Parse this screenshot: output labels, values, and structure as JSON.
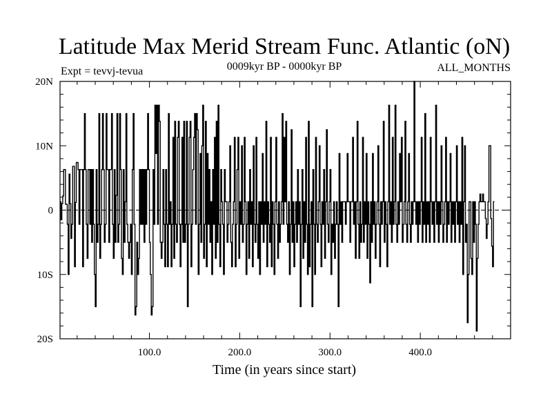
{
  "chart_data": {
    "type": "line",
    "title": "Latitude Max Merid Stream Func. Atlantic (oN)",
    "subtitle_left": "Expt = tevvj-tevua",
    "subtitle_center": "0009kyr BP - 0000kyr BP",
    "subtitle_right": "ALL_MONTHS",
    "xlabel": "Time (in years since start)",
    "ylabel": "",
    "xlim": [
      1,
      500
    ],
    "ylim": [
      -20,
      20
    ],
    "xticks": [
      {
        "value": 100,
        "label": "100.0"
      },
      {
        "value": 200,
        "label": "200.0"
      },
      {
        "value": 300,
        "label": "300.0"
      },
      {
        "value": 400,
        "label": "400.0"
      }
    ],
    "yticks": [
      {
        "value": 20,
        "label": "20N"
      },
      {
        "value": 10,
        "label": "10N"
      },
      {
        "value": 0,
        "label": "0"
      },
      {
        "value": -10,
        "label": "10S"
      },
      {
        "value": -20,
        "label": "20S"
      }
    ],
    "zero_line": true,
    "grid": false,
    "series": [
      {
        "name": "latitude_max",
        "x_start": 1,
        "x_step": 1,
        "values": [
          1.3,
          -1.5,
          1.0,
          2.2,
          6.3,
          6.3,
          0.9,
          0.9,
          -2.2,
          -10.0,
          5.6,
          1.0,
          -4.4,
          -2.2,
          6.8,
          6.8,
          -8.8,
          1.2,
          7.4,
          7.4,
          6.3,
          -2.2,
          6.3,
          6.3,
          6.3,
          -8.8,
          6.3,
          15.0,
          6.3,
          -2.2,
          -7.5,
          6.3,
          6.3,
          -2.2,
          6.3,
          -5.0,
          6.3,
          -2.2,
          -10.0,
          -15.0,
          6.3,
          -5.0,
          -2.2,
          15.0,
          -7.5,
          -2.2,
          6.3,
          15.0,
          6.3,
          -5.0,
          -2.2,
          15.0,
          6.3,
          6.3,
          -5.0,
          6.3,
          6.3,
          15.0,
          -2.2,
          -7.5,
          6.3,
          -5.0,
          2.3,
          15.0,
          -5.0,
          -2.2,
          15.0,
          6.3,
          -7.5,
          -10.0,
          6.3,
          -5.0,
          1.3,
          15.0,
          -2.2,
          -5.0,
          -7.5,
          -5.0,
          -2.2,
          -10.0,
          6.3,
          15.0,
          -2.2,
          -16.3,
          -15.0,
          -5.0,
          -10.0,
          -7.5,
          6.3,
          -2.2,
          6.3,
          -2.2,
          6.3,
          -5.0,
          6.3,
          -2.2,
          6.3,
          15.0,
          6.3,
          -5.0,
          -10.0,
          -16.3,
          -15.0,
          6.3,
          -2.2,
          16.3,
          8.8,
          16.3,
          -2.2,
          16.3,
          13.8,
          -5.0,
          -7.5,
          -5.0,
          6.3,
          -2.2,
          -8.8,
          6.3,
          -2.2,
          -8.8,
          15.0,
          -2.2,
          1.3,
          -8.8,
          -2.2,
          11.3,
          -7.5,
          13.8,
          -2.2,
          -5.0,
          11.3,
          13.8,
          -2.2,
          -8.8,
          -2.2,
          11.3,
          -5.0,
          13.8,
          -5.0,
          -2.2,
          13.8,
          -15.0,
          -2.2,
          11.3,
          13.8,
          -8.8,
          -2.2,
          6.3,
          11.3,
          15.0,
          -2.2,
          15.0,
          12.5,
          -10.0,
          -2.2,
          8.8,
          -5.0,
          10.0,
          16.3,
          -7.5,
          -2.2,
          13.8,
          -8.8,
          8.8,
          -2.2,
          6.3,
          -5.0,
          1.3,
          -10.0,
          6.3,
          -2.2,
          11.3,
          -7.5,
          13.8,
          -5.0,
          16.3,
          -2.2,
          -8.8,
          6.3,
          1.3,
          -2.2,
          -10.0,
          6.3,
          1.3,
          1.3,
          -5.0,
          -2.2,
          1.3,
          10.0,
          -5.0,
          -8.8,
          -2.2,
          1.3,
          11.3,
          -8.8,
          -2.2,
          6.3,
          11.3,
          -7.5,
          1.3,
          -2.2,
          10.0,
          -5.0,
          -2.2,
          11.3,
          1.3,
          -10.0,
          -2.2,
          1.3,
          -7.5,
          6.3,
          -2.2,
          1.3,
          -8.8,
          10.0,
          -2.2,
          -5.0,
          11.3,
          -2.2,
          -7.5,
          1.3,
          -10.0,
          1.3,
          -2.2,
          8.8,
          -5.0,
          1.3,
          -2.2,
          13.8,
          -8.8,
          1.3,
          -2.2,
          -5.0,
          11.3,
          -8.8,
          1.3,
          -2.2,
          -10.0,
          1.3,
          11.3,
          -2.2,
          -7.5,
          1.3,
          -5.0,
          -2.2,
          1.3,
          15.0,
          -2.2,
          11.3,
          1.3,
          13.8,
          -2.2,
          -5.0,
          1.3,
          -10.0,
          -2.2,
          12.5,
          -5.0,
          1.3,
          -8.8,
          -2.2,
          1.3,
          -5.0,
          6.3,
          -2.2,
          1.3,
          -15.0,
          -2.2,
          6.3,
          -7.5,
          1.3,
          -5.0,
          11.3,
          -2.2,
          -10.0,
          13.8,
          -8.8,
          -2.2,
          1.3,
          -15.0,
          6.3,
          -2.2,
          -10.0,
          11.3,
          -2.2,
          -5.0,
          1.3,
          10.0,
          -2.2,
          -8.8,
          1.3,
          -2.2,
          6.3,
          -7.5,
          1.3,
          12.5,
          -2.2,
          -5.0,
          1.3,
          6.3,
          -10.0,
          -2.2,
          -5.0,
          1.3,
          -7.5,
          -2.2,
          1.3,
          -2.2,
          -15.0,
          8.8,
          -2.2,
          1.3,
          -5.0,
          1.3,
          1.3,
          1.3,
          -2.2,
          1.3,
          8.8,
          1.3,
          1.3,
          -5.0,
          1.3,
          1.3,
          11.3,
          -2.2,
          1.3,
          -7.5,
          1.3,
          13.8,
          -2.2,
          -7.5,
          1.3,
          -5.0,
          -2.2,
          11.3,
          -5.0,
          1.3,
          -2.2,
          8.8,
          -7.5,
          1.3,
          -2.2,
          -11.3,
          1.3,
          -5.0,
          8.8,
          -2.2,
          1.3,
          -7.5,
          -2.2,
          1.3,
          10.0,
          -2.2,
          -8.8,
          1.3,
          -2.2,
          1.3,
          13.8,
          -5.0,
          1.3,
          -2.2,
          -8.8,
          1.3,
          16.3,
          -2.2,
          1.3,
          -5.0,
          11.3,
          -2.2,
          1.3,
          16.3,
          -2.2,
          -5.0,
          1.3,
          -2.2,
          8.8,
          1.3,
          11.3,
          -5.0,
          -2.2,
          1.3,
          13.8,
          -2.2,
          -5.0,
          1.3,
          8.8,
          -2.2,
          -5.0,
          1.3,
          -2.2,
          1.3,
          20.0,
          1.3,
          -2.2,
          1.3,
          -5.0,
          1.3,
          -2.2,
          1.3,
          11.3,
          -5.0,
          1.3,
          -2.2,
          15.0,
          -5.0,
          1.3,
          -2.2,
          1.3,
          -5.0,
          11.3,
          1.3,
          -2.2,
          1.3,
          -5.0,
          1.3,
          16.3,
          -2.2,
          1.3,
          -5.0,
          1.3,
          -2.2,
          10.0,
          1.3,
          -5.0,
          -2.2,
          1.3,
          11.3,
          -5.0,
          1.3,
          -2.2,
          1.3,
          8.8,
          -5.0,
          1.3,
          -2.2,
          1.3,
          -5.0,
          1.3,
          10.0,
          -2.2,
          1.3,
          -5.0,
          1.3,
          -2.2,
          11.3,
          -10.0,
          1.3,
          10.0,
          -5.0,
          -2.2,
          -17.5,
          -10.0,
          1.3,
          1.3,
          -7.5,
          -10.0,
          1.3,
          -5.0,
          1.3,
          -2.2,
          -18.8,
          -7.5,
          -2.2,
          1.3,
          2.5,
          1.3,
          1.3,
          2.5,
          1.3,
          1.3,
          -1.3,
          -4.4,
          -2.2,
          1.3,
          10.0,
          10.0,
          -1.3,
          -5.6,
          -8.8,
          1.3
        ]
      }
    ]
  }
}
